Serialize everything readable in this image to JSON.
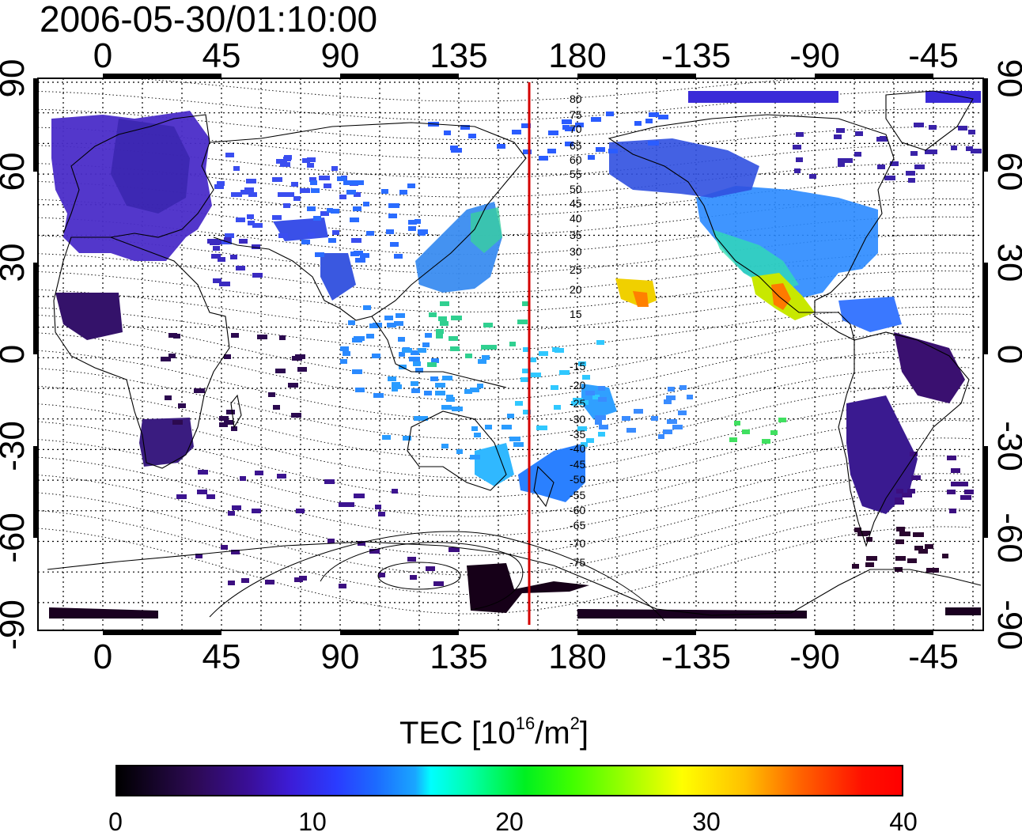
{
  "timestamp": "2006-05-30/01:10:00",
  "map": {
    "top_lon_ticks": [
      "0",
      "45",
      "90",
      "135",
      "180",
      "-135",
      "-90",
      "-45"
    ],
    "bottom_lon_ticks": [
      "0",
      "45",
      "90",
      "135",
      "180",
      "-135",
      "-90",
      "-45"
    ],
    "left_lat_ticks": [
      "90",
      "60",
      "30",
      "0",
      "-30",
      "-60",
      "-90"
    ],
    "right_lat_ticks": [
      "90",
      "60",
      "30",
      "0",
      "-30",
      "-60",
      "-90"
    ],
    "dip_contour_labels": [
      "80",
      "75",
      "70",
      "65",
      "60",
      "55",
      "50",
      "45",
      "40",
      "35",
      "30",
      "25",
      "20",
      "15",
      "-15",
      "-20",
      "-25",
      "-30",
      "-35",
      "-40",
      "-45",
      "-50",
      "-55",
      "-60",
      "-65",
      "-70",
      "-75"
    ],
    "terminator_color": "#d40000"
  },
  "colorbar": {
    "title": "TEC  [10",
    "title_exp": "16",
    "title_mid": "/m",
    "title_exp2": "2",
    "title_end": "]",
    "ticks": [
      "0",
      "10",
      "20",
      "30",
      "40"
    ],
    "range": [
      0,
      40
    ]
  }
}
